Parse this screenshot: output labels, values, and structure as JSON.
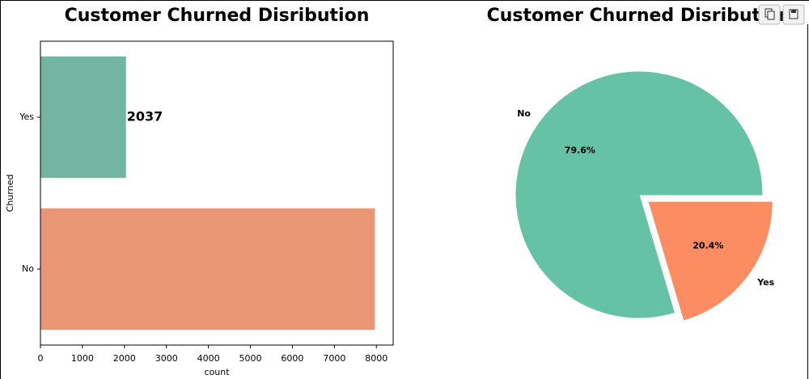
{
  "chart_data": [
    {
      "type": "barh",
      "title": "Customer Churned Disribution",
      "categories": [
        "Yes",
        "No"
      ],
      "values": [
        2037,
        7963
      ],
      "colors": [
        "#72b6a1",
        "#e99675"
      ],
      "labeled": [
        true,
        false
      ],
      "xlabel": "count",
      "ylabel": "Churned",
      "xlim": [
        0,
        8400
      ],
      "xticks": [
        0,
        1000,
        2000,
        3000,
        4000,
        5000,
        6000,
        7000,
        8000
      ]
    },
    {
      "type": "pie",
      "title": "Customer Churned Disribution",
      "categories": [
        "No",
        "Yes"
      ],
      "values": [
        79.6,
        20.4
      ],
      "value_labels": [
        "79.6%",
        "20.4%"
      ],
      "colors": [
        "#66c2a5",
        "#fc8d62"
      ],
      "explode": [
        0,
        0.1
      ]
    }
  ]
}
